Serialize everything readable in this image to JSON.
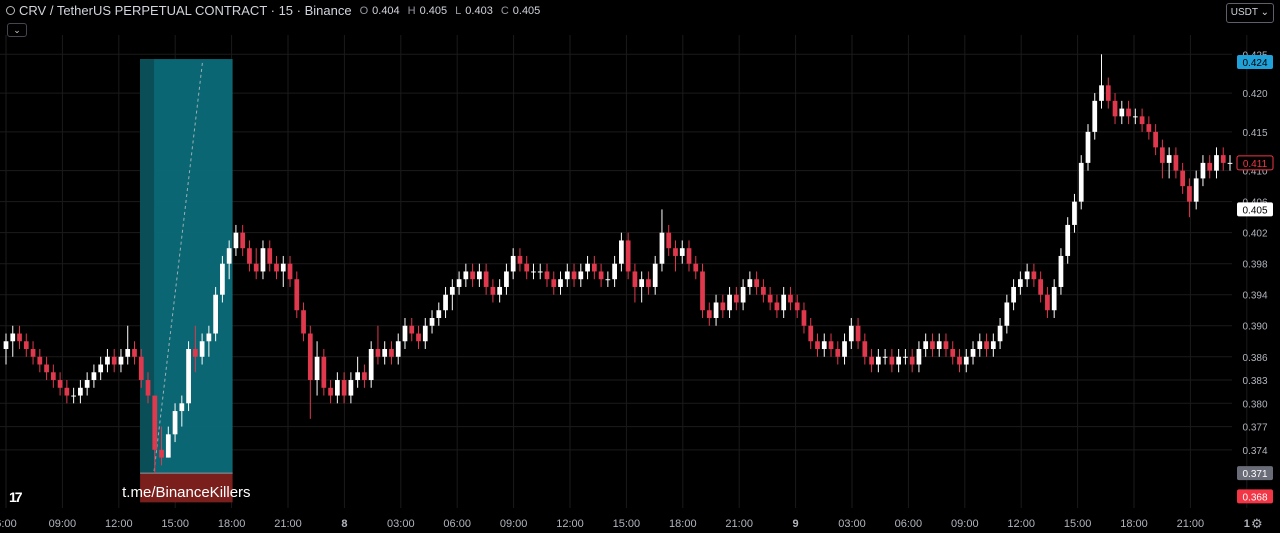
{
  "header": {
    "symbol": "CRV / TetherUS PERPETUAL CONTRACT · 15 · Binance",
    "open_label": "O",
    "open": "0.404",
    "high_label": "H",
    "high": "0.405",
    "low_label": "L",
    "low": "0.403",
    "close_label": "C",
    "close": "0.405",
    "collapse_icon": "chevron-down-icon"
  },
  "currency_button": "USDT",
  "colors": {
    "up": "#ffffff",
    "down": "#e0394d",
    "zone": "#0b6b78",
    "stop_zone": "#7a1f1c",
    "grid": "#1b1b1b",
    "price_tag_blue": "#1fa2d9",
    "price_tag_red": "#f23645"
  },
  "chart_data": {
    "type": "candlestick",
    "interval": "15",
    "price_axis": {
      "ticks": [
        "0.425",
        "0.420",
        "0.415",
        "0.410",
        "0.406",
        "0.402",
        "0.398",
        "0.394",
        "0.390",
        "0.386",
        "0.383",
        "0.380",
        "0.377",
        "0.374"
      ],
      "ylim": [
        0.3665,
        0.4262
      ],
      "labels": [
        {
          "text": "0.424",
          "price": 0.424,
          "style": "blue"
        },
        {
          "text": "0.411",
          "price": 0.411,
          "style": "red-outline"
        },
        {
          "text": "0.405",
          "price": 0.405,
          "style": "white"
        },
        {
          "text": "0.371",
          "price": 0.371,
          "style": "gray"
        },
        {
          "text": "0.368",
          "price": 0.368,
          "style": "red"
        }
      ]
    },
    "time_axis": {
      "ticks": [
        "6:00",
        "09:00",
        "12:00",
        "15:00",
        "18:00",
        "21:00",
        "8",
        "03:00",
        "06:00",
        "09:00",
        "12:00",
        "15:00",
        "18:00",
        "21:00",
        "9",
        "03:00",
        "06:00",
        "09:00",
        "12:00",
        "15:00",
        "18:00",
        "21:00",
        "1"
      ]
    },
    "position": {
      "entry": 0.371,
      "target": 0.424,
      "stop": 0.368,
      "start_time": "14:15",
      "end_time": "18:00",
      "label": "t.me/BinanceKillers"
    },
    "candles": [
      [
        0.387,
        0.389,
        0.385,
        0.388
      ],
      [
        0.388,
        0.39,
        0.386,
        0.389
      ],
      [
        0.389,
        0.39,
        0.387,
        0.388
      ],
      [
        0.388,
        0.389,
        0.386,
        0.387
      ],
      [
        0.387,
        0.388,
        0.385,
        0.386
      ],
      [
        0.386,
        0.387,
        0.384,
        0.385
      ],
      [
        0.385,
        0.386,
        0.383,
        0.384
      ],
      [
        0.384,
        0.385,
        0.382,
        0.383
      ],
      [
        0.383,
        0.384,
        0.381,
        0.382
      ],
      [
        0.382,
        0.383,
        0.38,
        0.381
      ],
      [
        0.381,
        0.382,
        0.38,
        0.381
      ],
      [
        0.381,
        0.383,
        0.38,
        0.382
      ],
      [
        0.382,
        0.384,
        0.381,
        0.383
      ],
      [
        0.383,
        0.385,
        0.382,
        0.384
      ],
      [
        0.384,
        0.386,
        0.383,
        0.385
      ],
      [
        0.385,
        0.387,
        0.384,
        0.386
      ],
      [
        0.386,
        0.387,
        0.384,
        0.385
      ],
      [
        0.385,
        0.387,
        0.384,
        0.386
      ],
      [
        0.386,
        0.39,
        0.385,
        0.387
      ],
      [
        0.387,
        0.388,
        0.385,
        0.386
      ],
      [
        0.386,
        0.387,
        0.382,
        0.383
      ],
      [
        0.383,
        0.384,
        0.38,
        0.381
      ],
      [
        0.381,
        0.381,
        0.371,
        0.374
      ],
      [
        0.374,
        0.377,
        0.372,
        0.373
      ],
      [
        0.373,
        0.377,
        0.373,
        0.376
      ],
      [
        0.376,
        0.38,
        0.375,
        0.379
      ],
      [
        0.379,
        0.381,
        0.377,
        0.38
      ],
      [
        0.38,
        0.388,
        0.379,
        0.387
      ],
      [
        0.387,
        0.39,
        0.384,
        0.386
      ],
      [
        0.386,
        0.389,
        0.385,
        0.388
      ],
      [
        0.388,
        0.39,
        0.386,
        0.389
      ],
      [
        0.389,
        0.395,
        0.388,
        0.394
      ],
      [
        0.394,
        0.399,
        0.393,
        0.398
      ],
      [
        0.398,
        0.401,
        0.396,
        0.4
      ],
      [
        0.4,
        0.403,
        0.399,
        0.402
      ],
      [
        0.402,
        0.403,
        0.399,
        0.4
      ],
      [
        0.4,
        0.401,
        0.397,
        0.398
      ],
      [
        0.398,
        0.4,
        0.396,
        0.397
      ],
      [
        0.397,
        0.401,
        0.396,
        0.4
      ],
      [
        0.4,
        0.401,
        0.397,
        0.398
      ],
      [
        0.398,
        0.399,
        0.396,
        0.397
      ],
      [
        0.397,
        0.399,
        0.395,
        0.398
      ],
      [
        0.398,
        0.399,
        0.395,
        0.396
      ],
      [
        0.396,
        0.397,
        0.391,
        0.392
      ],
      [
        0.392,
        0.393,
        0.388,
        0.389
      ],
      [
        0.389,
        0.39,
        0.378,
        0.383
      ],
      [
        0.383,
        0.388,
        0.381,
        0.386
      ],
      [
        0.386,
        0.387,
        0.381,
        0.382
      ],
      [
        0.382,
        0.383,
        0.38,
        0.381
      ],
      [
        0.381,
        0.384,
        0.38,
        0.383
      ],
      [
        0.383,
        0.384,
        0.38,
        0.381
      ],
      [
        0.381,
        0.384,
        0.38,
        0.383
      ],
      [
        0.383,
        0.386,
        0.382,
        0.384
      ],
      [
        0.384,
        0.385,
        0.382,
        0.383
      ],
      [
        0.383,
        0.388,
        0.382,
        0.387
      ],
      [
        0.387,
        0.39,
        0.385,
        0.386
      ],
      [
        0.386,
        0.388,
        0.385,
        0.387
      ],
      [
        0.387,
        0.388,
        0.385,
        0.386
      ],
      [
        0.386,
        0.389,
        0.385,
        0.388
      ],
      [
        0.388,
        0.391,
        0.387,
        0.39
      ],
      [
        0.39,
        0.391,
        0.388,
        0.389
      ],
      [
        0.389,
        0.39,
        0.387,
        0.388
      ],
      [
        0.388,
        0.391,
        0.387,
        0.39
      ],
      [
        0.39,
        0.392,
        0.389,
        0.391
      ],
      [
        0.391,
        0.393,
        0.39,
        0.392
      ],
      [
        0.392,
        0.395,
        0.391,
        0.394
      ],
      [
        0.394,
        0.396,
        0.392,
        0.395
      ],
      [
        0.395,
        0.397,
        0.394,
        0.396
      ],
      [
        0.396,
        0.398,
        0.395,
        0.397
      ],
      [
        0.397,
        0.398,
        0.395,
        0.396
      ],
      [
        0.396,
        0.398,
        0.395,
        0.397
      ],
      [
        0.397,
        0.398,
        0.394,
        0.395
      ],
      [
        0.395,
        0.396,
        0.393,
        0.394
      ],
      [
        0.394,
        0.396,
        0.393,
        0.395
      ],
      [
        0.395,
        0.398,
        0.394,
        0.397
      ],
      [
        0.397,
        0.4,
        0.396,
        0.399
      ],
      [
        0.399,
        0.4,
        0.397,
        0.398
      ],
      [
        0.398,
        0.399,
        0.396,
        0.397
      ],
      [
        0.397,
        0.398,
        0.396,
        0.397
      ],
      [
        0.397,
        0.398,
        0.396,
        0.397
      ],
      [
        0.397,
        0.398,
        0.395,
        0.396
      ],
      [
        0.396,
        0.397,
        0.394,
        0.395
      ],
      [
        0.395,
        0.397,
        0.394,
        0.396
      ],
      [
        0.396,
        0.398,
        0.395,
        0.397
      ],
      [
        0.397,
        0.398,
        0.395,
        0.396
      ],
      [
        0.396,
        0.398,
        0.395,
        0.397
      ],
      [
        0.397,
        0.399,
        0.396,
        0.398
      ],
      [
        0.398,
        0.399,
        0.396,
        0.397
      ],
      [
        0.397,
        0.398,
        0.395,
        0.396
      ],
      [
        0.396,
        0.397,
        0.395,
        0.396
      ],
      [
        0.396,
        0.399,
        0.395,
        0.398
      ],
      [
        0.398,
        0.402,
        0.397,
        0.401
      ],
      [
        0.401,
        0.402,
        0.396,
        0.397
      ],
      [
        0.397,
        0.398,
        0.393,
        0.395
      ],
      [
        0.395,
        0.397,
        0.393,
        0.396
      ],
      [
        0.396,
        0.397,
        0.394,
        0.395
      ],
      [
        0.395,
        0.399,
        0.394,
        0.398
      ],
      [
        0.398,
        0.405,
        0.397,
        0.402
      ],
      [
        0.402,
        0.403,
        0.399,
        0.4
      ],
      [
        0.4,
        0.401,
        0.397,
        0.399
      ],
      [
        0.399,
        0.401,
        0.398,
        0.4
      ],
      [
        0.4,
        0.401,
        0.397,
        0.398
      ],
      [
        0.398,
        0.399,
        0.396,
        0.397
      ],
      [
        0.397,
        0.398,
        0.391,
        0.392
      ],
      [
        0.392,
        0.393,
        0.39,
        0.391
      ],
      [
        0.391,
        0.394,
        0.39,
        0.393
      ],
      [
        0.393,
        0.394,
        0.391,
        0.392
      ],
      [
        0.392,
        0.395,
        0.391,
        0.394
      ],
      [
        0.394,
        0.395,
        0.392,
        0.393
      ],
      [
        0.393,
        0.396,
        0.392,
        0.395
      ],
      [
        0.395,
        0.397,
        0.394,
        0.396
      ],
      [
        0.396,
        0.397,
        0.394,
        0.395
      ],
      [
        0.395,
        0.396,
        0.393,
        0.394
      ],
      [
        0.394,
        0.395,
        0.392,
        0.393
      ],
      [
        0.393,
        0.394,
        0.391,
        0.392
      ],
      [
        0.392,
        0.395,
        0.391,
        0.394
      ],
      [
        0.394,
        0.395,
        0.392,
        0.393
      ],
      [
        0.393,
        0.394,
        0.391,
        0.392
      ],
      [
        0.392,
        0.393,
        0.389,
        0.39
      ],
      [
        0.39,
        0.391,
        0.387,
        0.388
      ],
      [
        0.388,
        0.389,
        0.386,
        0.387
      ],
      [
        0.387,
        0.389,
        0.386,
        0.388
      ],
      [
        0.388,
        0.389,
        0.386,
        0.387
      ],
      [
        0.387,
        0.388,
        0.385,
        0.386
      ],
      [
        0.386,
        0.389,
        0.385,
        0.388
      ],
      [
        0.388,
        0.391,
        0.387,
        0.39
      ],
      [
        0.39,
        0.391,
        0.387,
        0.388
      ],
      [
        0.388,
        0.389,
        0.385,
        0.386
      ],
      [
        0.386,
        0.387,
        0.384,
        0.385
      ],
      [
        0.385,
        0.387,
        0.384,
        0.386
      ],
      [
        0.386,
        0.387,
        0.385,
        0.386
      ],
      [
        0.386,
        0.387,
        0.384,
        0.385
      ],
      [
        0.385,
        0.387,
        0.384,
        0.386
      ],
      [
        0.386,
        0.387,
        0.385,
        0.386
      ],
      [
        0.386,
        0.387,
        0.384,
        0.385
      ],
      [
        0.385,
        0.388,
        0.384,
        0.387
      ],
      [
        0.387,
        0.389,
        0.386,
        0.388
      ],
      [
        0.388,
        0.389,
        0.386,
        0.387
      ],
      [
        0.387,
        0.389,
        0.386,
        0.388
      ],
      [
        0.388,
        0.389,
        0.386,
        0.387
      ],
      [
        0.387,
        0.388,
        0.385,
        0.386
      ],
      [
        0.386,
        0.387,
        0.384,
        0.385
      ],
      [
        0.385,
        0.387,
        0.384,
        0.386
      ],
      [
        0.386,
        0.388,
        0.385,
        0.387
      ],
      [
        0.387,
        0.389,
        0.386,
        0.388
      ],
      [
        0.388,
        0.389,
        0.386,
        0.387
      ],
      [
        0.387,
        0.389,
        0.386,
        0.388
      ],
      [
        0.388,
        0.391,
        0.387,
        0.39
      ],
      [
        0.39,
        0.394,
        0.389,
        0.393
      ],
      [
        0.393,
        0.396,
        0.392,
        0.395
      ],
      [
        0.395,
        0.397,
        0.394,
        0.396
      ],
      [
        0.396,
        0.398,
        0.395,
        0.397
      ],
      [
        0.397,
        0.398,
        0.395,
        0.396
      ],
      [
        0.396,
        0.397,
        0.393,
        0.394
      ],
      [
        0.394,
        0.395,
        0.391,
        0.392
      ],
      [
        0.392,
        0.396,
        0.391,
        0.395
      ],
      [
        0.395,
        0.4,
        0.394,
        0.399
      ],
      [
        0.399,
        0.404,
        0.398,
        0.403
      ],
      [
        0.403,
        0.407,
        0.402,
        0.406
      ],
      [
        0.406,
        0.412,
        0.405,
        0.411
      ],
      [
        0.411,
        0.416,
        0.41,
        0.415
      ],
      [
        0.415,
        0.42,
        0.414,
        0.419
      ],
      [
        0.419,
        0.425,
        0.418,
        0.421
      ],
      [
        0.421,
        0.422,
        0.418,
        0.419
      ],
      [
        0.419,
        0.42,
        0.416,
        0.417
      ],
      [
        0.417,
        0.419,
        0.416,
        0.418
      ],
      [
        0.418,
        0.419,
        0.416,
        0.417
      ],
      [
        0.417,
        0.418,
        0.416,
        0.417
      ],
      [
        0.417,
        0.418,
        0.415,
        0.416
      ],
      [
        0.416,
        0.417,
        0.414,
        0.415
      ],
      [
        0.415,
        0.416,
        0.412,
        0.413
      ],
      [
        0.413,
        0.414,
        0.409,
        0.411
      ],
      [
        0.411,
        0.413,
        0.409,
        0.412
      ],
      [
        0.412,
        0.413,
        0.409,
        0.41
      ],
      [
        0.41,
        0.411,
        0.407,
        0.408
      ],
      [
        0.408,
        0.409,
        0.404,
        0.406
      ],
      [
        0.406,
        0.41,
        0.405,
        0.409
      ],
      [
        0.409,
        0.412,
        0.408,
        0.411
      ],
      [
        0.411,
        0.412,
        0.409,
        0.41
      ],
      [
        0.41,
        0.413,
        0.409,
        0.412
      ],
      [
        0.412,
        0.413,
        0.41,
        0.411
      ],
      [
        0.411,
        0.412,
        0.41,
        0.411
      ]
    ]
  }
}
